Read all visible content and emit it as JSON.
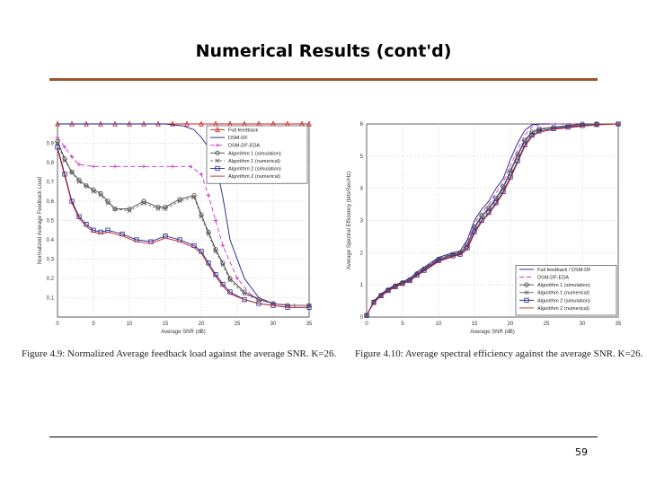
{
  "slide": {
    "title": "Numerical Results (cont'd)",
    "page_number": "59"
  },
  "colors": {
    "accent_rule": "#a0522d"
  },
  "chart_data": [
    {
      "type": "line",
      "caption": "Figure 4.9: Normalized Average feedback load against the average SNR. K=26.",
      "xlabel": "Average SNR (dB)",
      "ylabel": "Normalized Average Feedback Load",
      "xlim": [
        0,
        35
      ],
      "ylim": [
        0,
        1
      ],
      "xticks": [
        0,
        5,
        10,
        15,
        20,
        25,
        30,
        35
      ],
      "yticks": [
        0.1,
        0.2,
        0.3,
        0.4,
        0.5,
        0.6,
        0.7,
        0.8,
        0.9
      ],
      "grid": true,
      "legend": "top-right",
      "series": [
        {
          "name": "Full feedback",
          "color": "#cc2222",
          "dash": "",
          "marker": "triangle",
          "x": [
            0,
            2,
            4,
            6,
            8,
            10,
            12,
            14,
            16,
            18,
            20,
            22,
            24,
            26,
            28,
            30,
            32,
            34,
            35
          ],
          "y": [
            1,
            1,
            1,
            1,
            1,
            1,
            1,
            1,
            1,
            1,
            1,
            1,
            1,
            1,
            1,
            1,
            1,
            1,
            1
          ]
        },
        {
          "name": "DSM-DF",
          "color": "#1a1a8c",
          "dash": "",
          "marker": "none",
          "x": [
            0,
            5,
            10,
            15,
            17.5,
            19,
            20,
            21,
            22,
            23,
            24,
            26,
            28,
            30,
            32,
            35
          ],
          "y": [
            1,
            1,
            1,
            1,
            0.99,
            0.97,
            0.93,
            0.88,
            0.8,
            0.62,
            0.4,
            0.2,
            0.1,
            0.07,
            0.06,
            0.06
          ]
        },
        {
          "name": "DSM-DF-EDA",
          "color": "#cc33cc",
          "dash": "5,3",
          "marker": "plus",
          "x": [
            0,
            1,
            2,
            3,
            5,
            8,
            12,
            16,
            18.5,
            20,
            21,
            22,
            23,
            25,
            27,
            30,
            33,
            35
          ],
          "y": [
            0.93,
            0.88,
            0.83,
            0.79,
            0.78,
            0.78,
            0.78,
            0.78,
            0.78,
            0.74,
            0.63,
            0.5,
            0.37,
            0.2,
            0.11,
            0.07,
            0.06,
            0.06
          ]
        },
        {
          "name": "Algorithm 1 (simulation)",
          "color": "#444444",
          "dash": "",
          "marker": "circle",
          "x": [
            0,
            1,
            2,
            3,
            4,
            5,
            6,
            7,
            8,
            10,
            12,
            14,
            15,
            17,
            19,
            20,
            21,
            22,
            23,
            24,
            26,
            28,
            30,
            32,
            35
          ],
          "y": [
            0.91,
            0.82,
            0.75,
            0.71,
            0.68,
            0.66,
            0.64,
            0.6,
            0.56,
            0.56,
            0.6,
            0.57,
            0.57,
            0.61,
            0.63,
            0.53,
            0.44,
            0.35,
            0.28,
            0.2,
            0.13,
            0.09,
            0.07,
            0.06,
            0.06
          ]
        },
        {
          "name": "Algorithm 1 (numerical)",
          "color": "#666666",
          "dash": "3,2",
          "marker": "star",
          "x": [
            0,
            1,
            2,
            3,
            4,
            5,
            6,
            7,
            8,
            10,
            12,
            14,
            15,
            17,
            19,
            20,
            21,
            22,
            23,
            24,
            26,
            28,
            30,
            32,
            35
          ],
          "y": [
            0.9,
            0.81,
            0.75,
            0.7,
            0.68,
            0.65,
            0.63,
            0.59,
            0.56,
            0.55,
            0.59,
            0.56,
            0.56,
            0.6,
            0.62,
            0.52,
            0.43,
            0.34,
            0.27,
            0.19,
            0.12,
            0.09,
            0.07,
            0.06,
            0.06
          ]
        },
        {
          "name": "Algorithm 2 (simulation)",
          "color": "#22228c",
          "dash": "",
          "marker": "square",
          "x": [
            0,
            1,
            2,
            3,
            4,
            5,
            6,
            7,
            9,
            11,
            13,
            15,
            17,
            19,
            20,
            21,
            22,
            23,
            24,
            26,
            28,
            30,
            32,
            35
          ],
          "y": [
            0.88,
            0.74,
            0.6,
            0.52,
            0.48,
            0.45,
            0.44,
            0.45,
            0.43,
            0.4,
            0.39,
            0.42,
            0.4,
            0.37,
            0.34,
            0.28,
            0.22,
            0.17,
            0.13,
            0.09,
            0.07,
            0.06,
            0.05,
            0.05
          ]
        },
        {
          "name": "Algorithm 2 (numerical)",
          "color": "#cc2222",
          "dash": "",
          "marker": "none",
          "x": [
            0,
            1,
            2,
            3,
            4,
            5,
            6,
            7,
            9,
            11,
            13,
            15,
            17,
            19,
            20,
            21,
            22,
            23,
            24,
            26,
            28,
            30,
            32,
            35
          ],
          "y": [
            0.87,
            0.73,
            0.59,
            0.51,
            0.47,
            0.44,
            0.43,
            0.44,
            0.42,
            0.39,
            0.38,
            0.41,
            0.39,
            0.36,
            0.33,
            0.27,
            0.21,
            0.16,
            0.12,
            0.09,
            0.07,
            0.06,
            0.05,
            0.05
          ]
        }
      ]
    },
    {
      "type": "line",
      "caption": "Figure 4.10: Average spectral efficiency against the average SNR. K=26.",
      "xlabel": "Average SNR (dB)",
      "ylabel": "Average Spectral Efficiency (bits/Sec/Hz)",
      "xlim": [
        0,
        35
      ],
      "ylim": [
        0,
        6
      ],
      "xticks": [
        0,
        5,
        10,
        15,
        20,
        25,
        30,
        35
      ],
      "yticks": [
        0,
        1,
        2,
        3,
        4,
        5,
        6
      ],
      "grid": true,
      "legend": "bottom-right",
      "series": [
        {
          "name": "Full feedback / DSM-DF",
          "color": "#1a1a8c",
          "dash": "",
          "marker": "none",
          "x": [
            0,
            1,
            2,
            3,
            4,
            5,
            6,
            7,
            8,
            10,
            12,
            13,
            14,
            15,
            16,
            17,
            18,
            19,
            20,
            21,
            22,
            23,
            24,
            25,
            27,
            30,
            33,
            35
          ],
          "y": [
            0.05,
            0.5,
            0.72,
            0.88,
            1.0,
            1.1,
            1.2,
            1.4,
            1.55,
            1.85,
            2.0,
            2.05,
            2.4,
            3.0,
            3.35,
            3.6,
            4.0,
            4.3,
            4.9,
            5.4,
            5.8,
            5.97,
            6.0,
            6.0,
            6.0,
            6.0,
            6.0,
            6.0
          ]
        },
        {
          "name": "DSM-DF-EDA",
          "color": "#cc33cc",
          "dash": "5,3",
          "marker": "none",
          "x": [
            0,
            1,
            2,
            3,
            4,
            5,
            6,
            7,
            8,
            10,
            12,
            13,
            14,
            15,
            16,
            17,
            18,
            19,
            20,
            21,
            22,
            23,
            24,
            26,
            28,
            30,
            35
          ],
          "y": [
            0.05,
            0.48,
            0.7,
            0.86,
            0.98,
            1.08,
            1.18,
            1.38,
            1.52,
            1.82,
            1.97,
            2.0,
            2.3,
            2.9,
            3.25,
            3.5,
            3.85,
            4.2,
            4.7,
            5.2,
            5.65,
            5.9,
            5.98,
            6.0,
            6.0,
            6.0,
            6.0
          ]
        },
        {
          "name": "Algorithm 1 (simulation)",
          "color": "#444444",
          "dash": "",
          "marker": "circle",
          "x": [
            0,
            1,
            2,
            3,
            4,
            5,
            6,
            7,
            8,
            10,
            12,
            13,
            14,
            15,
            16,
            17,
            18,
            19,
            20,
            21,
            22,
            23,
            24,
            26,
            28,
            30,
            32,
            35
          ],
          "y": [
            0.05,
            0.47,
            0.68,
            0.85,
            0.97,
            1.07,
            1.16,
            1.35,
            1.5,
            1.8,
            1.95,
            2.0,
            2.25,
            2.8,
            3.15,
            3.4,
            3.7,
            4.05,
            4.55,
            5.05,
            5.5,
            5.75,
            5.85,
            5.9,
            5.95,
            6.0,
            6.0,
            6.0
          ]
        },
        {
          "name": "Algorithm 1 (numerical)",
          "color": "#666666",
          "dash": "",
          "marker": "star",
          "x": [
            0,
            1,
            2,
            3,
            4,
            5,
            6,
            7,
            8,
            10,
            12,
            13,
            14,
            15,
            16,
            17,
            18,
            19,
            20,
            21,
            22,
            23,
            24,
            26,
            28,
            30,
            32,
            35
          ],
          "y": [
            0.05,
            0.46,
            0.67,
            0.84,
            0.96,
            1.06,
            1.15,
            1.33,
            1.48,
            1.78,
            1.93,
            1.98,
            2.22,
            2.75,
            3.1,
            3.35,
            3.65,
            4.0,
            4.5,
            5.0,
            5.45,
            5.72,
            5.83,
            5.88,
            5.93,
            5.98,
            6.0,
            6.0
          ]
        },
        {
          "name": "Algorithm 2 (simulation)",
          "color": "#22228c",
          "dash": "",
          "marker": "square",
          "x": [
            0,
            1,
            2,
            3,
            4,
            5,
            6,
            7,
            8,
            10,
            12,
            13,
            14,
            15,
            16,
            17,
            18,
            19,
            20,
            21,
            22,
            23,
            24,
            26,
            28,
            30,
            32,
            35
          ],
          "y": [
            0.05,
            0.45,
            0.66,
            0.82,
            0.94,
            1.04,
            1.13,
            1.3,
            1.45,
            1.75,
            1.9,
            1.95,
            2.15,
            2.65,
            3.0,
            3.25,
            3.55,
            3.9,
            4.35,
            4.85,
            5.35,
            5.65,
            5.78,
            5.85,
            5.9,
            5.95,
            5.98,
            6.0
          ]
        },
        {
          "name": "Algorithm 2 (numerical)",
          "color": "#cc2222",
          "dash": "",
          "marker": "none",
          "x": [
            0,
            1,
            2,
            3,
            4,
            5,
            6,
            7,
            8,
            10,
            12,
            13,
            14,
            15,
            16,
            17,
            18,
            19,
            20,
            21,
            22,
            23,
            24,
            26,
            28,
            30,
            32,
            35
          ],
          "y": [
            0.05,
            0.44,
            0.65,
            0.81,
            0.93,
            1.03,
            1.12,
            1.28,
            1.43,
            1.72,
            1.88,
            1.93,
            2.1,
            2.6,
            2.95,
            3.2,
            3.5,
            3.85,
            4.3,
            4.8,
            5.3,
            5.6,
            5.75,
            5.83,
            5.88,
            5.93,
            5.97,
            6.0
          ]
        }
      ]
    }
  ]
}
